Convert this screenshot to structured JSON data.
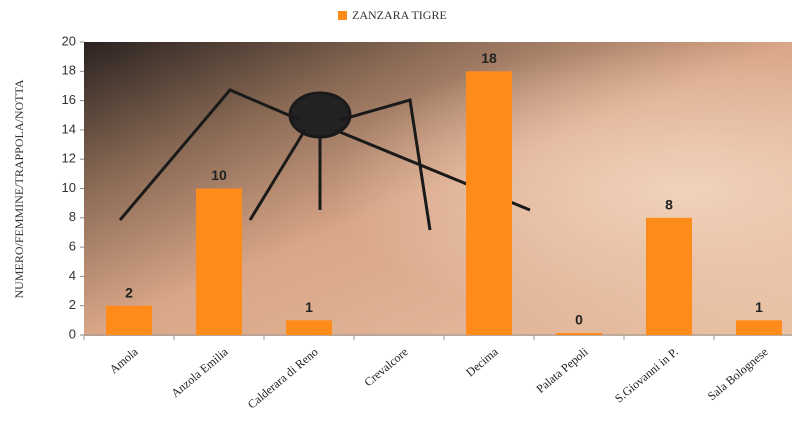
{
  "chart_data": {
    "type": "bar",
    "legend": "ZANZARA TIGRE",
    "y_label": "NUMERO/FEMMINE/TRAPPOLA/NOTTA",
    "categories": [
      "Amola",
      "Anzola Emilia",
      "Calderara di Reno",
      "Crevalcore",
      "Decima",
      "Palata Pepoli",
      "S.Giovanni in P.",
      "Sala Bolognese"
    ],
    "values": [
      2,
      10,
      1,
      null,
      18,
      0,
      8,
      1
    ],
    "color": "#ff8c1a",
    "ylim": [
      0,
      20
    ],
    "yticks": [
      0,
      2,
      4,
      6,
      8,
      10,
      12,
      14,
      16,
      18,
      20
    ]
  }
}
